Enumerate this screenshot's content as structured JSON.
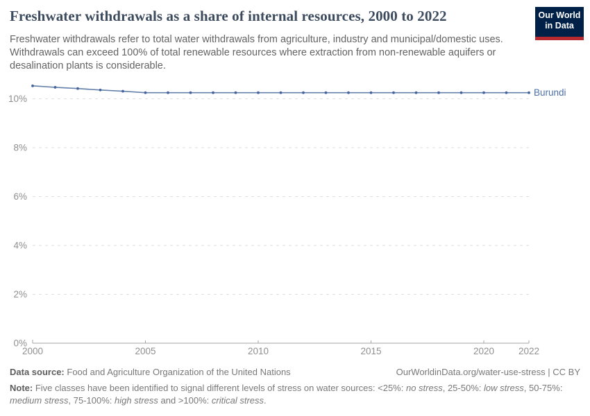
{
  "header": {
    "title": "Freshwater withdrawals as a share of internal resources, 2000 to 2022",
    "subtitle": "Freshwater withdrawals refer to total water withdrawals from agriculture, industry and municipal/domestic uses. Withdrawals can exceed 100% of total renewable resources where extraction from non-renewable aquifers or desalination plants is considerable.",
    "logo": {
      "line1": "Our World",
      "line2": "in Data",
      "bg_color": "#002147",
      "accent_color": "#b5292f"
    }
  },
  "chart_data": {
    "type": "line",
    "title": "Freshwater withdrawals as a share of internal resources, 2000 to 2022",
    "xlabel": "",
    "ylabel": "",
    "x": [
      2000,
      2001,
      2002,
      2003,
      2004,
      2005,
      2006,
      2007,
      2008,
      2009,
      2010,
      2011,
      2012,
      2013,
      2014,
      2015,
      2016,
      2017,
      2018,
      2019,
      2020,
      2021,
      2022
    ],
    "series": [
      {
        "name": "Burundi",
        "color": "#6581ab",
        "marker_color": "#44649d",
        "label_color": "#4c6ea8",
        "values": [
          10.53,
          10.47,
          10.42,
          10.36,
          10.31,
          10.25,
          10.25,
          10.25,
          10.25,
          10.25,
          10.25,
          10.25,
          10.25,
          10.25,
          10.25,
          10.25,
          10.25,
          10.25,
          10.25,
          10.25,
          10.25,
          10.25,
          10.25
        ]
      }
    ],
    "xlim": [
      2000,
      2022
    ],
    "ylim": [
      0,
      10.86
    ],
    "x_ticks": [
      2000,
      2005,
      2010,
      2015,
      2020,
      2022
    ],
    "y_ticks": [
      0,
      2,
      4,
      6,
      8,
      10
    ],
    "y_tick_suffix": "%",
    "grid": "horizontal-dashed",
    "grid_color": "#dedede",
    "axis_color": "#a5a5a5",
    "tick_label_color": "#8f8f8f",
    "legend": "entity-label-at-line-end"
  },
  "footer": {
    "source": {
      "label": "Data source:",
      "text": "Food and Agriculture Organization of the United Nations"
    },
    "link_text": "OurWorldinData.org/water-use-stress | CC BY",
    "note": {
      "segments": [
        {
          "t": "Note:"
        },
        {
          "t": " Five classes have been identified to signal different levels of stress on water sources: <25%: "
        },
        {
          "t": "no stress"
        },
        {
          "t": ", 25-50%: "
        },
        {
          "t": "low stress"
        },
        {
          "t": ", 50-75%: "
        },
        {
          "t": "medium stress"
        },
        {
          "t": ", 75-100%: "
        },
        {
          "t": "high stress"
        },
        {
          "t": " and >100%: "
        },
        {
          "t": "critical stress"
        },
        {
          "t": "."
        }
      ]
    }
  }
}
